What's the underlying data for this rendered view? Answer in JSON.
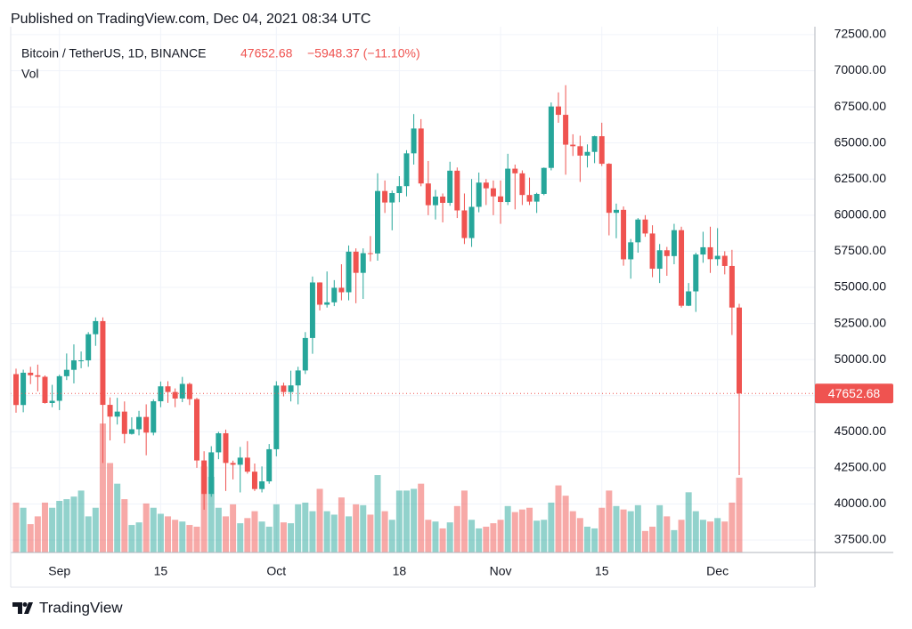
{
  "chart_data": {
    "type": "candlestick",
    "published": "Published on TradingView.com, Dec 04, 2021 08:34 UTC",
    "title": "Bitcoin / TetherUS, 1D, BINANCE",
    "change": "−5948.37 (−11.10%)",
    "volume_label": "Vol",
    "logo": "TradingView",
    "x": [
      "2021-08-26",
      "2021-08-27",
      "2021-08-28",
      "2021-08-29",
      "2021-08-30",
      "2021-08-31",
      "2021-09-01",
      "2021-09-02",
      "2021-09-03",
      "2021-09-04",
      "2021-09-05",
      "2021-09-06",
      "2021-09-07",
      "2021-09-08",
      "2021-09-09",
      "2021-09-10",
      "2021-09-11",
      "2021-09-12",
      "2021-09-13",
      "2021-09-14",
      "2021-09-15",
      "2021-09-16",
      "2021-09-17",
      "2021-09-18",
      "2021-09-19",
      "2021-09-20",
      "2021-09-21",
      "2021-09-22",
      "2021-09-23",
      "2021-09-24",
      "2021-09-25",
      "2021-09-26",
      "2021-09-27",
      "2021-09-28",
      "2021-09-29",
      "2021-09-30",
      "2021-10-01",
      "2021-10-02",
      "2021-10-03",
      "2021-10-04",
      "2021-10-05",
      "2021-10-06",
      "2021-10-07",
      "2021-10-08",
      "2021-10-09",
      "2021-10-10",
      "2021-10-11",
      "2021-10-12",
      "2021-10-13",
      "2021-10-14",
      "2021-10-15",
      "2021-10-16",
      "2021-10-17",
      "2021-10-18",
      "2021-10-19",
      "2021-10-20",
      "2021-10-21",
      "2021-10-22",
      "2021-10-23",
      "2021-10-24",
      "2021-10-25",
      "2021-10-26",
      "2021-10-27",
      "2021-10-28",
      "2021-10-29",
      "2021-10-30",
      "2021-10-31",
      "2021-11-01",
      "2021-11-02",
      "2021-11-03",
      "2021-11-04",
      "2021-11-05",
      "2021-11-06",
      "2021-11-07",
      "2021-11-08",
      "2021-11-09",
      "2021-11-10",
      "2021-11-11",
      "2021-11-12",
      "2021-11-13",
      "2021-11-14",
      "2021-11-15",
      "2021-11-16",
      "2021-11-17",
      "2021-11-18",
      "2021-11-19",
      "2021-11-20",
      "2021-11-21",
      "2021-11-22",
      "2021-11-23",
      "2021-11-24",
      "2021-11-25",
      "2021-11-26",
      "2021-11-27",
      "2021-11-28",
      "2021-11-29",
      "2021-11-30",
      "2021-12-01",
      "2021-12-02",
      "2021-12-03",
      "2021-12-04"
    ],
    "open": [
      48991,
      46852,
      49088,
      48912,
      48807,
      46991,
      47144,
      48847,
      49289,
      49943,
      49944,
      51754,
      52663,
      46863,
      46048,
      46396,
      44850,
      45173,
      46026,
      44940,
      47112,
      48146,
      47753,
      47303,
      48314,
      47261,
      43012,
      40694,
      43575,
      44896,
      42840,
      42717,
      43208,
      42236,
      41035,
      41565,
      43791,
      48199,
      47753,
      48210,
      49245,
      51493,
      55339,
      53798,
      53963,
      54971,
      54660,
      57471,
      56005,
      57367,
      57347,
      61672,
      60875,
      61528,
      62009,
      64280,
      66001,
      62193,
      60688,
      61286,
      60852,
      63078,
      60328,
      58413,
      60575,
      62253,
      61859,
      61299,
      60911,
      63219,
      62896,
      61395,
      60937,
      61470,
      63273,
      67525,
      66947,
      64882,
      64774,
      64122,
      64380,
      65466,
      63557,
      60161,
      60368,
      56942,
      58119,
      59697,
      58730,
      56289,
      57569,
      57166,
      58960,
      53726,
      54721,
      57274,
      57776,
      56950,
      57184,
      56480,
      53601.05
    ],
    "high": [
      49370,
      49300,
      49500,
      49650,
      48900,
      48250,
      48950,
      50420,
      51050,
      50560,
      51900,
      52920,
      52920,
      47380,
      47350,
      47100,
      46000,
      46450,
      46900,
      47250,
      48480,
      48500,
      48000,
      48800,
      48400,
      47350,
      43650,
      44000,
      45000,
      45150,
      43000,
      43950,
      44350,
      42800,
      42600,
      44150,
      48500,
      48400,
      49230,
      49500,
      51900,
      55750,
      55350,
      56100,
      55500,
      56600,
      57900,
      57700,
      57700,
      58550,
      62900,
      62400,
      61700,
      62700,
      64500,
      67000,
      66650,
      63750,
      61750,
      61500,
      63700,
      63300,
      61500,
      62500,
      62950,
      62500,
      62400,
      62400,
      64250,
      63500,
      63100,
      62600,
      61550,
      63300,
      67800,
      68500,
      69000,
      65600,
      65500,
      64900,
      65500,
      66400,
      63600,
      60800,
      60600,
      58350,
      59800,
      60000,
      59300,
      58000,
      57800,
      59400,
      59200,
      55300,
      57400,
      58850,
      59200,
      59100,
      57500,
      57600,
      53860
    ],
    "low": [
      46322,
      46350,
      48300,
      47800,
      46950,
      46700,
      46500,
      48580,
      48350,
      49400,
      49500,
      50950,
      42843,
      44400,
      45500,
      44200,
      44800,
      44750,
      43370,
      44750,
      46700,
      47000,
      46700,
      47050,
      46850,
      42500,
      39600,
      40500,
      43100,
      40900,
      41700,
      40800,
      42100,
      40900,
      40800,
      41400,
      43300,
      47450,
      47100,
      46900,
      49000,
      50400,
      53400,
      53600,
      53700,
      54100,
      54100,
      53900,
      54200,
      56800,
      56850,
      60150,
      58950,
      60900,
      61300,
      63500,
      62000,
      60000,
      59700,
      59500,
      60650,
      59800,
      58000,
      57800,
      60200,
      60700,
      60000,
      59400,
      60700,
      60400,
      60700,
      60700,
      60150,
      61380,
      63100,
      66400,
      62800,
      64100,
      62300,
      63300,
      63600,
      63400,
      58600,
      58400,
      56500,
      55600,
      57400,
      58500,
      55700,
      55300,
      55800,
      56600,
      53600,
      53700,
      53300,
      56700,
      56000,
      56500,
      55900,
      51700,
      42000
    ],
    "close": [
      46852,
      49088,
      48912,
      48807,
      46991,
      47144,
      48847,
      49289,
      49943,
      49944,
      51754,
      52663,
      46863,
      46048,
      46396,
      44850,
      45173,
      46026,
      44940,
      47112,
      48146,
      47753,
      47303,
      48314,
      47261,
      43012,
      40694,
      43575,
      44896,
      42840,
      42717,
      43208,
      42236,
      41035,
      41565,
      43791,
      48199,
      47753,
      48210,
      49245,
      51493,
      55339,
      53798,
      53963,
      54971,
      54660,
      57471,
      56005,
      57367,
      57347,
      61672,
      60875,
      61528,
      62009,
      64280,
      66001,
      62193,
      60688,
      61286,
      60852,
      63078,
      60328,
      58413,
      60575,
      62253,
      61859,
      61299,
      60911,
      63219,
      62896,
      61395,
      60937,
      61470,
      63273,
      67525,
      66947,
      64882,
      64774,
      64122,
      64380,
      65466,
      63557,
      60161,
      60368,
      56942,
      58119,
      59697,
      58730,
      56289,
      57569,
      57166,
      58960,
      53726,
      54721,
      57274,
      57776,
      56950,
      57184,
      56480,
      53601.05,
      47652.68
    ],
    "volume": [
      58,
      52,
      33,
      42,
      58,
      52,
      60,
      62,
      65,
      72,
      42,
      52,
      150,
      104,
      80,
      62,
      32,
      35,
      57,
      52,
      45,
      42,
      38,
      36,
      32,
      30,
      100,
      88,
      52,
      42,
      56,
      34,
      40,
      48,
      36,
      30,
      56,
      35,
      34,
      56,
      58,
      48,
      74,
      48,
      44,
      64,
      42,
      56,
      55,
      44,
      90,
      48,
      38,
      72,
      72,
      74,
      80,
      38,
      36,
      28,
      35,
      54,
      72,
      38,
      28,
      30,
      34,
      38,
      54,
      47,
      50,
      52,
      37,
      38,
      58,
      78,
      66,
      48,
      40,
      30,
      28,
      52,
      72,
      54,
      50,
      48,
      55,
      25,
      30,
      55,
      42,
      26,
      38,
      70,
      48,
      38,
      36,
      40,
      36,
      58,
      87
    ],
    "up_color": "#26a69a",
    "down_color": "#ef5350",
    "ylim": [
      36640,
      73050
    ],
    "yticks": [
      {
        "value": 37500,
        "label": "37500.00"
      },
      {
        "value": 40000,
        "label": "40000.00"
      },
      {
        "value": 42500,
        "label": "42500.00"
      },
      {
        "value": 45000,
        "label": "45000.00"
      },
      {
        "value": 47500,
        "label": "47500.00"
      },
      {
        "value": 50000,
        "label": "50000.00"
      },
      {
        "value": 52500,
        "label": "52500.00"
      },
      {
        "value": 55000,
        "label": "55000.00"
      },
      {
        "value": 57500,
        "label": "57500.00"
      },
      {
        "value": 60000,
        "label": "60000.00"
      },
      {
        "value": 62500,
        "label": "62500.00"
      },
      {
        "value": 65000,
        "label": "65000.00"
      },
      {
        "value": 67500,
        "label": "67500.00"
      },
      {
        "value": 70000,
        "label": "70000.00"
      },
      {
        "value": 72500,
        "label": "72500.00"
      }
    ],
    "xticks": [
      {
        "value": "2021-09-01",
        "label": "Sep"
      },
      {
        "value": "2021-09-15",
        "label": "15"
      },
      {
        "value": "2021-10-01",
        "label": "Oct"
      },
      {
        "value": "2021-10-18",
        "label": "18"
      },
      {
        "value": "2021-11-01",
        "label": "Nov"
      },
      {
        "value": "2021-11-15",
        "label": "15"
      },
      {
        "value": "2021-12-01",
        "label": "Dec"
      }
    ],
    "grid": true
  }
}
